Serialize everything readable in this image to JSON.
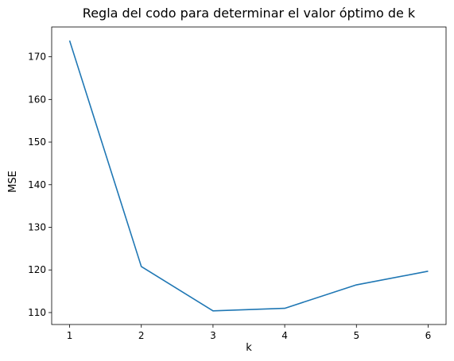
{
  "chart_data": {
    "type": "line",
    "title": "Regla del codo para determinar el valor óptimo de k",
    "xlabel": "k",
    "ylabel": "MSE",
    "x": [
      1,
      2,
      3,
      4,
      5,
      6
    ],
    "series": [
      {
        "values": [
          173.8,
          120.8,
          110.4,
          111.0,
          116.5,
          119.7
        ],
        "color": "#1f77b4"
      }
    ],
    "xticks": [
      1,
      2,
      3,
      4,
      5,
      6
    ],
    "yticks": [
      110,
      120,
      130,
      140,
      150,
      160,
      170
    ],
    "xlim": [
      0.75,
      6.25
    ],
    "ylim": [
      107.2,
      177.0
    ],
    "grid": false
  }
}
